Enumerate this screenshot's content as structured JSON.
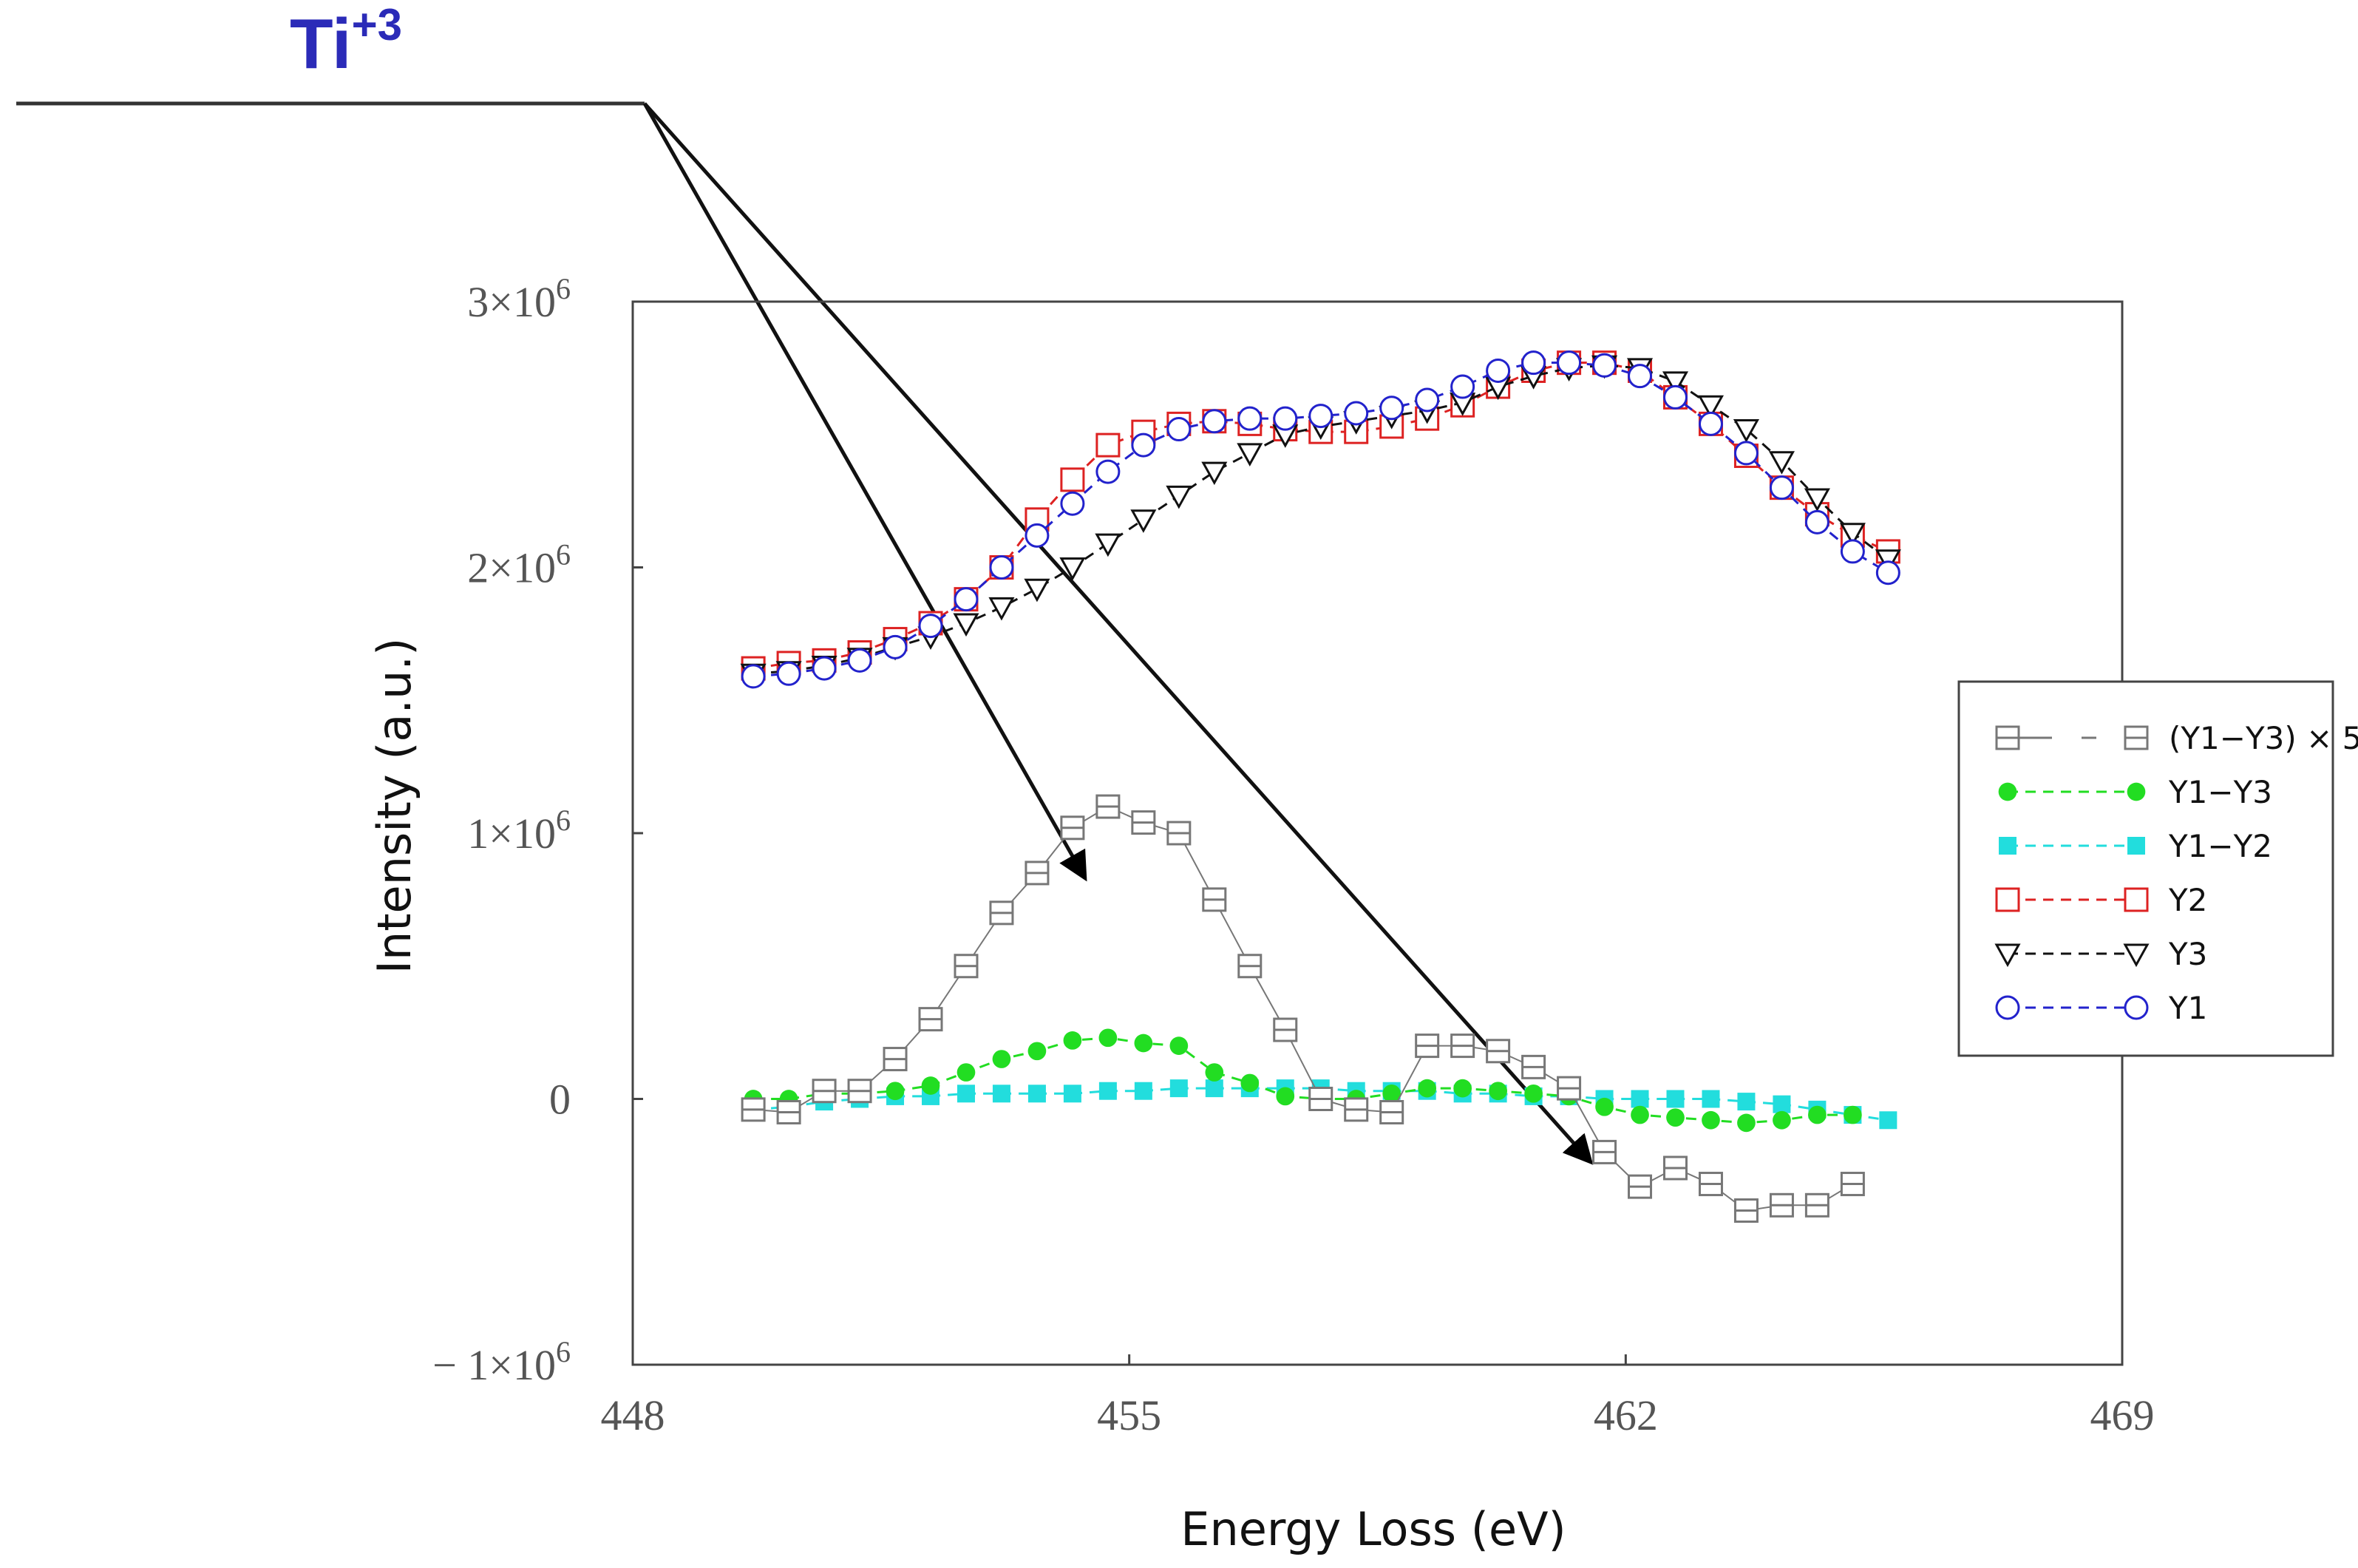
{
  "annotation": {
    "label": "Ti",
    "superscript": "+3",
    "color": "#2b2bb8"
  },
  "chart_data": {
    "type": "scatter",
    "xlabel": "Energy Loss (eV)",
    "ylabel": "Intensity (a.u.)",
    "xlim": [
      448,
      469
    ],
    "ylim": [
      -1000000,
      3000000
    ],
    "x_ticks": [
      "448",
      "455",
      "462",
      "469"
    ],
    "y_ticks": [
      {
        "value": 3000000,
        "base": "3×10",
        "exp": "6"
      },
      {
        "value": 2000000,
        "base": "2×10",
        "exp": "6"
      },
      {
        "value": 1000000,
        "base": "1×10",
        "exp": "6"
      },
      {
        "value": 0,
        "base": "0",
        "exp": ""
      },
      {
        "value": -1000000,
        "base": "− 1×10",
        "exp": "6"
      }
    ],
    "grid": false,
    "legend_position": "right",
    "x": [
      449.7,
      450.2,
      450.7,
      451.2,
      451.7,
      452.2,
      452.7,
      453.2,
      453.7,
      454.2,
      454.7,
      455.2,
      455.7,
      456.2,
      456.7,
      457.2,
      457.7,
      458.2,
      458.7,
      459.2,
      459.7,
      460.2,
      460.7,
      461.2,
      461.7,
      462.2,
      462.7,
      463.2,
      463.7,
      464.2,
      464.7,
      465.2,
      465.7,
      466.2
    ],
    "series": [
      {
        "name": "(Y1−Y3) × 5",
        "color": "#777777",
        "marker": "hsquare",
        "line": "solid-thin",
        "values": [
          -40000,
          -50000,
          30000,
          30000,
          150000,
          300000,
          500000,
          700000,
          850000,
          1020000,
          1100000,
          1040000,
          1000000,
          750000,
          500000,
          260000,
          0,
          -40000,
          -50000,
          200000,
          200000,
          180000,
          120000,
          40000,
          -200000,
          -330000,
          -260000,
          -320000,
          -420000,
          -400000,
          -400000,
          -320000,
          null,
          null
        ]
      },
      {
        "name": "Y1−Y3",
        "color": "#22dd22",
        "marker": "circle-filled",
        "line": "dashed",
        "values": [
          0,
          0,
          20000,
          20000,
          30000,
          50000,
          100000,
          150000,
          180000,
          220000,
          230000,
          210000,
          200000,
          100000,
          60000,
          10000,
          0,
          0,
          20000,
          40000,
          40000,
          30000,
          20000,
          10000,
          -30000,
          -60000,
          -70000,
          -80000,
          -90000,
          -80000,
          -60000,
          -60000,
          null,
          null
        ]
      },
      {
        "name": "Y1−Y2",
        "color": "#22dddd",
        "marker": "square-filled",
        "line": "dashed",
        "values": [
          -40000,
          -30000,
          -10000,
          0,
          10000,
          10000,
          20000,
          20000,
          20000,
          20000,
          30000,
          30000,
          40000,
          40000,
          40000,
          40000,
          40000,
          30000,
          30000,
          30000,
          20000,
          20000,
          10000,
          10000,
          0,
          0,
          0,
          0,
          -10000,
          -20000,
          -40000,
          -60000,
          -80000,
          null
        ]
      },
      {
        "name": "Y2",
        "color": "#dd2222",
        "marker": "square-open",
        "line": "dashed",
        "values": [
          1620000,
          1640000,
          1650000,
          1680000,
          1730000,
          1790000,
          1880000,
          2000000,
          2180000,
          2330000,
          2460000,
          2510000,
          2540000,
          2550000,
          2540000,
          2520000,
          2510000,
          2510000,
          2530000,
          2560000,
          2610000,
          2680000,
          2740000,
          2770000,
          2770000,
          2740000,
          2640000,
          2540000,
          2420000,
          2300000,
          2200000,
          2120000,
          2060000,
          null
        ]
      },
      {
        "name": "Y3",
        "color": "#111111",
        "marker": "triangle-open",
        "line": "dashed",
        "values": [
          1600000,
          1610000,
          1630000,
          1660000,
          1700000,
          1740000,
          1790000,
          1850000,
          1920000,
          2000000,
          2090000,
          2180000,
          2270000,
          2360000,
          2430000,
          2500000,
          2530000,
          2550000,
          2570000,
          2590000,
          2620000,
          2680000,
          2720000,
          2750000,
          2760000,
          2750000,
          2700000,
          2610000,
          2520000,
          2400000,
          2260000,
          2130000,
          2030000,
          null
        ]
      },
      {
        "name": "Y1",
        "color": "#2222cc",
        "marker": "circle-open",
        "line": "dashed",
        "values": [
          1590000,
          1600000,
          1620000,
          1650000,
          1700000,
          1780000,
          1880000,
          2000000,
          2120000,
          2240000,
          2360000,
          2460000,
          2520000,
          2550000,
          2560000,
          2560000,
          2570000,
          2580000,
          2600000,
          2630000,
          2680000,
          2740000,
          2770000,
          2770000,
          2760000,
          2720000,
          2640000,
          2540000,
          2430000,
          2300000,
          2170000,
          2060000,
          1980000,
          null
        ]
      }
    ],
    "legend_order": [
      0,
      1,
      2,
      3,
      4,
      5
    ]
  }
}
